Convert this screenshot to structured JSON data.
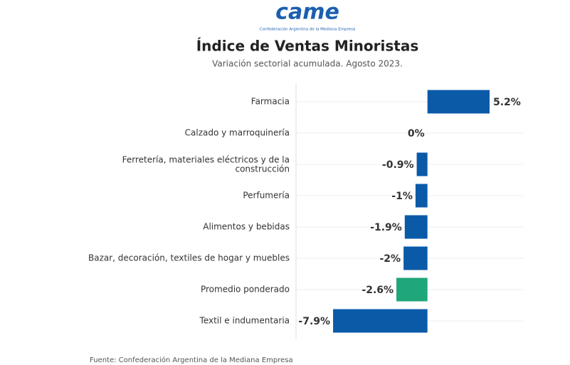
{
  "logo": {
    "name": "came",
    "tagline": "Confederación Argentina de la Mediana Empresa"
  },
  "chart_data": {
    "type": "hbar",
    "title": "Índice de Ventas Minoristas",
    "subtitle": "Variación sectorial acumulada. Agosto 2023.",
    "categories": [
      "Farmacia",
      "Calzado y marroquinería",
      "Ferretería, materiales eléctricos y de la\nconstrucción",
      "Perfumería",
      "Alimentos y bebidas",
      "Bazar, decoración, textiles de hogar y muebles",
      "Promedio ponderado",
      "Textil e indumentaria"
    ],
    "values": [
      5.2,
      0,
      -0.9,
      -1,
      -1.9,
      -2,
      -2.6,
      -7.9
    ],
    "value_labels": [
      "5.2%",
      "0%",
      "-0.9%",
      "-1%",
      "-1.9%",
      "-2%",
      "-2.6%",
      "-7.9%"
    ],
    "colors": [
      "#0a5aa8",
      "#0a5aa8",
      "#0a5aa8",
      "#0a5aa8",
      "#0a5aa8",
      "#0a5aa8",
      "#1fa67a",
      "#0a5aa8"
    ],
    "xlim": [
      -11,
      8
    ],
    "source": "Fuente: Confederación Argentina de la Mediana Empresa"
  }
}
